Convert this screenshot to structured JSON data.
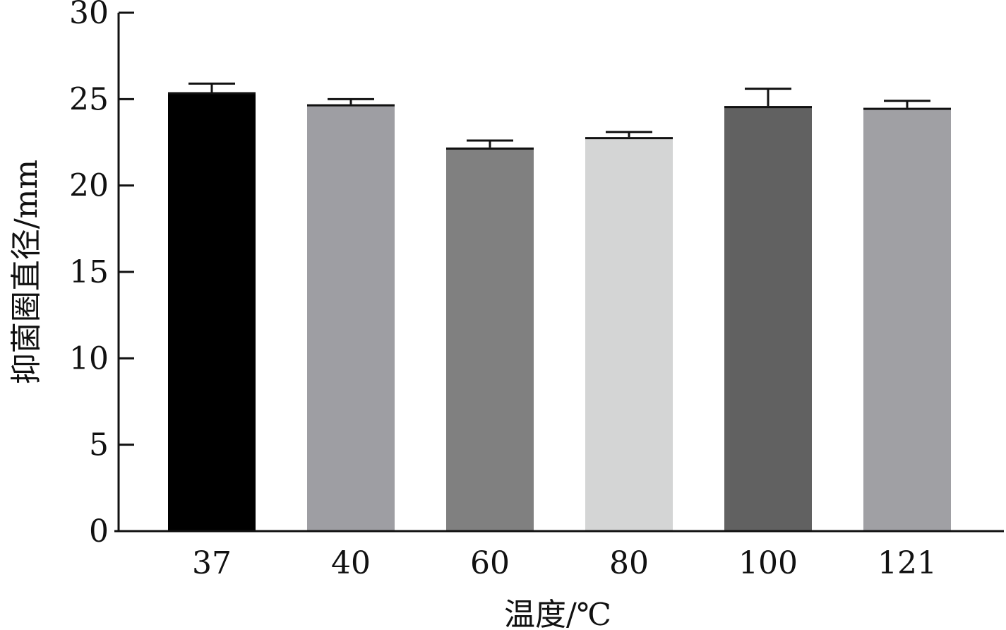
{
  "chart_data": {
    "type": "bar",
    "xlabel": "温度/℃",
    "ylabel": "抑菌圈直径/mm",
    "ylim": [
      0,
      30
    ],
    "y_ticks": [
      0,
      5,
      10,
      15,
      20,
      25,
      30
    ],
    "grid": false,
    "categories": [
      "37",
      "40",
      "60",
      "80",
      "100",
      "121"
    ],
    "values": [
      25.4,
      24.7,
      22.2,
      22.8,
      24.6,
      24.5
    ],
    "errors": [
      0.5,
      0.3,
      0.4,
      0.3,
      1.0,
      0.4
    ],
    "colors": [
      "#000000",
      "#9e9ea3",
      "#808080",
      "#d4d5d5",
      "#616161",
      "#a0a0a4"
    ]
  }
}
